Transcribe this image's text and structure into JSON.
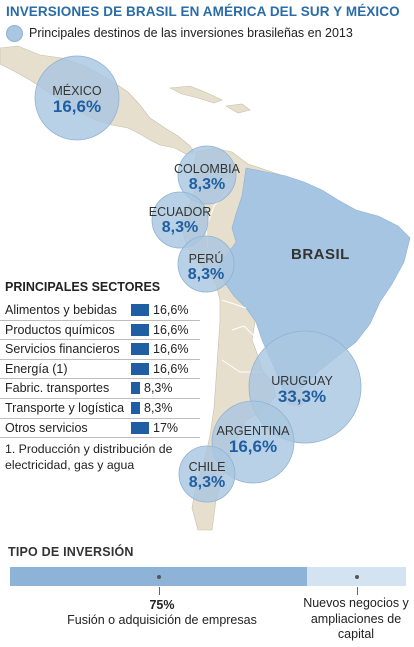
{
  "title": "INVERSIONES DE BRASIL EN AMÉRICA DEL SUR Y MÉXICO",
  "legend": "Principales destinos de las inversiones brasileñas en 2013",
  "map": {
    "country_label": "BRASIL",
    "destinations": [
      {
        "name": "MÉXICO",
        "value": "16,6%"
      },
      {
        "name": "COLOMBIA",
        "value": "8,3%"
      },
      {
        "name": "ECUADOR",
        "value": "8,3%"
      },
      {
        "name": "PERÚ",
        "value": "8,3%"
      },
      {
        "name": "URUGUAY",
        "value": "33,3%"
      },
      {
        "name": "ARGENTINA",
        "value": "16,6%"
      },
      {
        "name": "CHILE",
        "value": "8,3%"
      }
    ]
  },
  "sectors": {
    "title": "PRINCIPALES SECTORES",
    "items": [
      {
        "label": "Alimentos y bebidas",
        "value": "16,6%",
        "share": 16.6
      },
      {
        "label": "Productos químicos",
        "value": "16,6%",
        "share": 16.6
      },
      {
        "label": "Servicios financieros",
        "value": "16,6%",
        "share": 16.6
      },
      {
        "label": "Energía (1)",
        "value": "16,6%",
        "share": 16.6
      },
      {
        "label": "Fabric. transportes",
        "value": "8,3%",
        "share": 8.3
      },
      {
        "label": "Transporte y logística",
        "value": "8,3%",
        "share": 8.3
      },
      {
        "label": "Otros servicios",
        "value": "17%",
        "share": 17
      }
    ],
    "footnote": "1. Producción y distribución de electricidad, gas y agua"
  },
  "tipo": {
    "title": "TIPO DE INVERSIÓN",
    "fusion_pct": "75%",
    "fusion_share": 75,
    "fusion_label": "Fusión o adquisición de empresas",
    "nuevos_label": "Nuevos negocios y ampliaciones de capital"
  },
  "colors": {
    "title": "#2a6ca8",
    "circle_fill": "#a9c7e0",
    "value_text": "#1f5ea3",
    "brasil_fill": "#a6c5e2",
    "other_land": "#e7dfcd",
    "sea": "#ffffff"
  }
}
